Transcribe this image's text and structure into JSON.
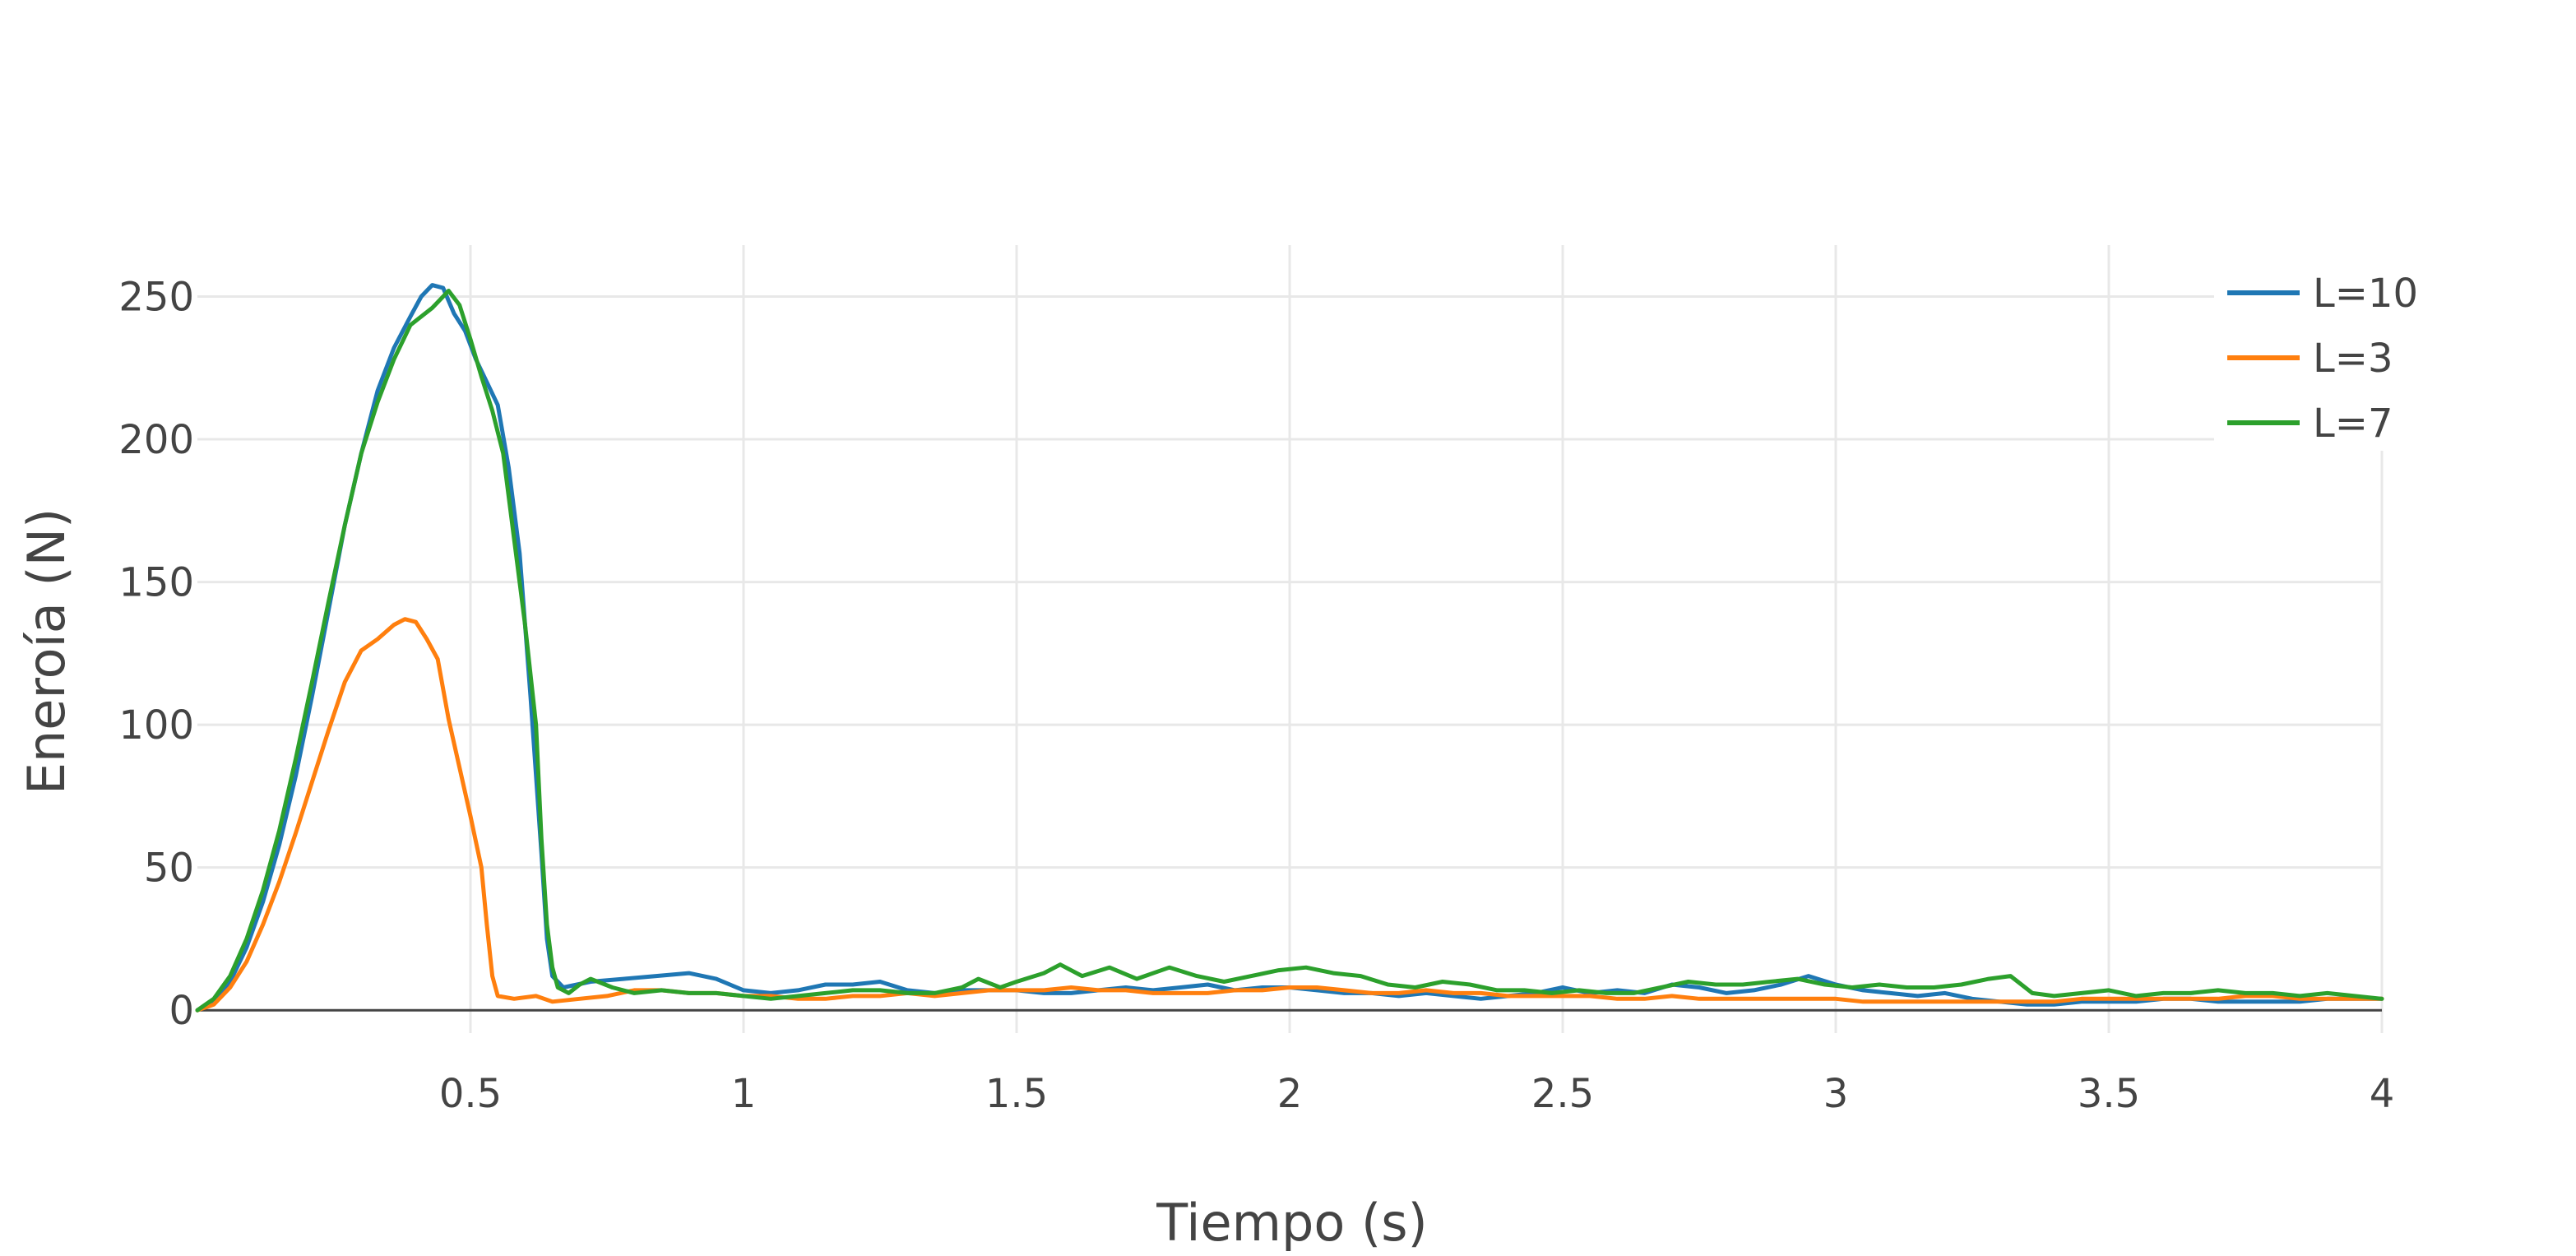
{
  "chart_data": {
    "type": "line",
    "title": "",
    "xlabel": "Tiempo (s)",
    "ylabel": "Eneroía (N)",
    "xlim": [
      0,
      4
    ],
    "ylim": [
      -8,
      268
    ],
    "x_ticks": [
      {
        "value": 0.5,
        "label": "0.5"
      },
      {
        "value": 1,
        "label": "1"
      },
      {
        "value": 1.5,
        "label": "1.5"
      },
      {
        "value": 2,
        "label": "2"
      },
      {
        "value": 2.5,
        "label": "2.5"
      },
      {
        "value": 3,
        "label": "3"
      },
      {
        "value": 3.5,
        "label": "3.5"
      },
      {
        "value": 4,
        "label": "4"
      }
    ],
    "y_ticks": [
      {
        "value": 0,
        "label": "0"
      },
      {
        "value": 50,
        "label": "50"
      },
      {
        "value": 100,
        "label": "100"
      },
      {
        "value": 150,
        "label": "150"
      },
      {
        "value": 200,
        "label": "200"
      },
      {
        "value": 250,
        "label": "250"
      }
    ],
    "grid": true,
    "legend_position": "top-right",
    "series": [
      {
        "name": "L=10",
        "color": "#1f77b4",
        "points": [
          [
            0.0,
            0
          ],
          [
            0.03,
            3
          ],
          [
            0.06,
            10
          ],
          [
            0.09,
            22
          ],
          [
            0.12,
            38
          ],
          [
            0.15,
            58
          ],
          [
            0.18,
            82
          ],
          [
            0.21,
            110
          ],
          [
            0.24,
            140
          ],
          [
            0.27,
            170
          ],
          [
            0.3,
            195
          ],
          [
            0.33,
            217
          ],
          [
            0.36,
            232
          ],
          [
            0.39,
            243
          ],
          [
            0.41,
            250
          ],
          [
            0.43,
            254
          ],
          [
            0.45,
            253
          ],
          [
            0.47,
            244
          ],
          [
            0.49,
            238
          ],
          [
            0.51,
            228
          ],
          [
            0.53,
            220
          ],
          [
            0.55,
            212
          ],
          [
            0.57,
            190
          ],
          [
            0.59,
            160
          ],
          [
            0.61,
            110
          ],
          [
            0.63,
            55
          ],
          [
            0.64,
            25
          ],
          [
            0.65,
            12
          ],
          [
            0.67,
            8
          ],
          [
            0.72,
            10
          ],
          [
            0.78,
            11
          ],
          [
            0.84,
            12
          ],
          [
            0.9,
            13
          ],
          [
            0.95,
            11
          ],
          [
            1.0,
            7
          ],
          [
            1.05,
            6
          ],
          [
            1.1,
            7
          ],
          [
            1.15,
            9
          ],
          [
            1.2,
            9
          ],
          [
            1.25,
            10
          ],
          [
            1.3,
            7
          ],
          [
            1.35,
            6
          ],
          [
            1.4,
            7
          ],
          [
            1.45,
            7
          ],
          [
            1.5,
            7
          ],
          [
            1.55,
            6
          ],
          [
            1.6,
            6
          ],
          [
            1.65,
            7
          ],
          [
            1.7,
            8
          ],
          [
            1.75,
            7
          ],
          [
            1.8,
            8
          ],
          [
            1.85,
            9
          ],
          [
            1.9,
            7
          ],
          [
            1.95,
            8
          ],
          [
            2.0,
            8
          ],
          [
            2.05,
            7
          ],
          [
            2.1,
            6
          ],
          [
            2.15,
            6
          ],
          [
            2.2,
            5
          ],
          [
            2.25,
            6
          ],
          [
            2.3,
            5
          ],
          [
            2.35,
            4
          ],
          [
            2.4,
            5
          ],
          [
            2.45,
            6
          ],
          [
            2.5,
            8
          ],
          [
            2.55,
            6
          ],
          [
            2.6,
            7
          ],
          [
            2.65,
            6
          ],
          [
            2.7,
            9
          ],
          [
            2.75,
            8
          ],
          [
            2.8,
            6
          ],
          [
            2.85,
            7
          ],
          [
            2.9,
            9
          ],
          [
            2.95,
            12
          ],
          [
            3.0,
            9
          ],
          [
            3.05,
            7
          ],
          [
            3.1,
            6
          ],
          [
            3.15,
            5
          ],
          [
            3.2,
            6
          ],
          [
            3.25,
            4
          ],
          [
            3.3,
            3
          ],
          [
            3.35,
            2
          ],
          [
            3.4,
            2
          ],
          [
            3.45,
            3
          ],
          [
            3.5,
            3
          ],
          [
            3.55,
            3
          ],
          [
            3.6,
            4
          ],
          [
            3.65,
            4
          ],
          [
            3.7,
            3
          ],
          [
            3.75,
            3
          ],
          [
            3.8,
            3
          ],
          [
            3.85,
            3
          ],
          [
            3.9,
            4
          ],
          [
            3.95,
            4
          ],
          [
            4.0,
            4
          ]
        ]
      },
      {
        "name": "L=3",
        "color": "#ff7f0e",
        "points": [
          [
            0.0,
            0
          ],
          [
            0.03,
            2
          ],
          [
            0.06,
            8
          ],
          [
            0.09,
            17
          ],
          [
            0.12,
            30
          ],
          [
            0.15,
            45
          ],
          [
            0.18,
            62
          ],
          [
            0.21,
            80
          ],
          [
            0.24,
            98
          ],
          [
            0.27,
            115
          ],
          [
            0.3,
            126
          ],
          [
            0.33,
            130
          ],
          [
            0.36,
            135
          ],
          [
            0.38,
            137
          ],
          [
            0.4,
            136
          ],
          [
            0.42,
            130
          ],
          [
            0.44,
            123
          ],
          [
            0.46,
            102
          ],
          [
            0.48,
            85
          ],
          [
            0.5,
            68
          ],
          [
            0.52,
            50
          ],
          [
            0.53,
            30
          ],
          [
            0.54,
            12
          ],
          [
            0.55,
            5
          ],
          [
            0.58,
            4
          ],
          [
            0.62,
            5
          ],
          [
            0.65,
            3
          ],
          [
            0.7,
            4
          ],
          [
            0.75,
            5
          ],
          [
            0.8,
            7
          ],
          [
            0.85,
            7
          ],
          [
            0.9,
            6
          ],
          [
            0.95,
            6
          ],
          [
            1.0,
            5
          ],
          [
            1.05,
            5
          ],
          [
            1.1,
            4
          ],
          [
            1.15,
            4
          ],
          [
            1.2,
            5
          ],
          [
            1.25,
            5
          ],
          [
            1.3,
            6
          ],
          [
            1.35,
            5
          ],
          [
            1.4,
            6
          ],
          [
            1.45,
            7
          ],
          [
            1.5,
            7
          ],
          [
            1.55,
            7
          ],
          [
            1.6,
            8
          ],
          [
            1.65,
            7
          ],
          [
            1.7,
            7
          ],
          [
            1.75,
            6
          ],
          [
            1.8,
            6
          ],
          [
            1.85,
            6
          ],
          [
            1.9,
            7
          ],
          [
            1.95,
            7
          ],
          [
            2.0,
            8
          ],
          [
            2.05,
            8
          ],
          [
            2.1,
            7
          ],
          [
            2.15,
            6
          ],
          [
            2.2,
            6
          ],
          [
            2.25,
            7
          ],
          [
            2.3,
            6
          ],
          [
            2.35,
            6
          ],
          [
            2.4,
            5
          ],
          [
            2.45,
            5
          ],
          [
            2.5,
            5
          ],
          [
            2.55,
            5
          ],
          [
            2.6,
            4
          ],
          [
            2.65,
            4
          ],
          [
            2.7,
            5
          ],
          [
            2.75,
            4
          ],
          [
            2.8,
            4
          ],
          [
            2.85,
            4
          ],
          [
            2.9,
            4
          ],
          [
            2.95,
            4
          ],
          [
            3.0,
            4
          ],
          [
            3.05,
            3
          ],
          [
            3.1,
            3
          ],
          [
            3.15,
            3
          ],
          [
            3.2,
            3
          ],
          [
            3.25,
            3
          ],
          [
            3.3,
            3
          ],
          [
            3.35,
            3
          ],
          [
            3.4,
            3
          ],
          [
            3.45,
            4
          ],
          [
            3.5,
            4
          ],
          [
            3.55,
            4
          ],
          [
            3.6,
            4
          ],
          [
            3.65,
            4
          ],
          [
            3.7,
            4
          ],
          [
            3.75,
            5
          ],
          [
            3.8,
            5
          ],
          [
            3.85,
            4
          ],
          [
            3.9,
            4
          ],
          [
            3.95,
            4
          ],
          [
            4.0,
            4
          ]
        ]
      },
      {
        "name": "L=7",
        "color": "#2ca02c",
        "points": [
          [
            0.0,
            0
          ],
          [
            0.03,
            4
          ],
          [
            0.06,
            12
          ],
          [
            0.09,
            25
          ],
          [
            0.12,
            42
          ],
          [
            0.15,
            63
          ],
          [
            0.18,
            88
          ],
          [
            0.21,
            115
          ],
          [
            0.24,
            143
          ],
          [
            0.27,
            170
          ],
          [
            0.3,
            195
          ],
          [
            0.33,
            213
          ],
          [
            0.36,
            228
          ],
          [
            0.39,
            240
          ],
          [
            0.41,
            243
          ],
          [
            0.43,
            246
          ],
          [
            0.45,
            250
          ],
          [
            0.46,
            252
          ],
          [
            0.48,
            247
          ],
          [
            0.5,
            235
          ],
          [
            0.52,
            222
          ],
          [
            0.54,
            210
          ],
          [
            0.56,
            195
          ],
          [
            0.58,
            165
          ],
          [
            0.6,
            135
          ],
          [
            0.62,
            100
          ],
          [
            0.63,
            60
          ],
          [
            0.64,
            30
          ],
          [
            0.65,
            15
          ],
          [
            0.66,
            8
          ],
          [
            0.68,
            6
          ],
          [
            0.7,
            9
          ],
          [
            0.72,
            11
          ],
          [
            0.76,
            8
          ],
          [
            0.8,
            6
          ],
          [
            0.85,
            7
          ],
          [
            0.9,
            6
          ],
          [
            0.95,
            6
          ],
          [
            1.0,
            5
          ],
          [
            1.05,
            4
          ],
          [
            1.1,
            5
          ],
          [
            1.15,
            6
          ],
          [
            1.2,
            7
          ],
          [
            1.25,
            7
          ],
          [
            1.3,
            6
          ],
          [
            1.35,
            6
          ],
          [
            1.4,
            8
          ],
          [
            1.43,
            11
          ],
          [
            1.47,
            8
          ],
          [
            1.5,
            10
          ],
          [
            1.55,
            13
          ],
          [
            1.58,
            16
          ],
          [
            1.62,
            12
          ],
          [
            1.67,
            15
          ],
          [
            1.72,
            11
          ],
          [
            1.78,
            15
          ],
          [
            1.83,
            12
          ],
          [
            1.88,
            10
          ],
          [
            1.93,
            12
          ],
          [
            1.98,
            14
          ],
          [
            2.03,
            15
          ],
          [
            2.08,
            13
          ],
          [
            2.13,
            12
          ],
          [
            2.18,
            9
          ],
          [
            2.23,
            8
          ],
          [
            2.28,
            10
          ],
          [
            2.33,
            9
          ],
          [
            2.38,
            7
          ],
          [
            2.43,
            7
          ],
          [
            2.48,
            6
          ],
          [
            2.53,
            7
          ],
          [
            2.58,
            6
          ],
          [
            2.63,
            6
          ],
          [
            2.68,
            8
          ],
          [
            2.73,
            10
          ],
          [
            2.78,
            9
          ],
          [
            2.83,
            9
          ],
          [
            2.88,
            10
          ],
          [
            2.93,
            11
          ],
          [
            2.98,
            9
          ],
          [
            3.03,
            8
          ],
          [
            3.08,
            9
          ],
          [
            3.13,
            8
          ],
          [
            3.18,
            8
          ],
          [
            3.23,
            9
          ],
          [
            3.28,
            11
          ],
          [
            3.32,
            12
          ],
          [
            3.36,
            6
          ],
          [
            3.4,
            5
          ],
          [
            3.45,
            6
          ],
          [
            3.5,
            7
          ],
          [
            3.55,
            5
          ],
          [
            3.6,
            6
          ],
          [
            3.65,
            6
          ],
          [
            3.7,
            7
          ],
          [
            3.75,
            6
          ],
          [
            3.8,
            6
          ],
          [
            3.85,
            5
          ],
          [
            3.9,
            6
          ],
          [
            3.95,
            5
          ],
          [
            4.0,
            4
          ]
        ]
      }
    ]
  }
}
